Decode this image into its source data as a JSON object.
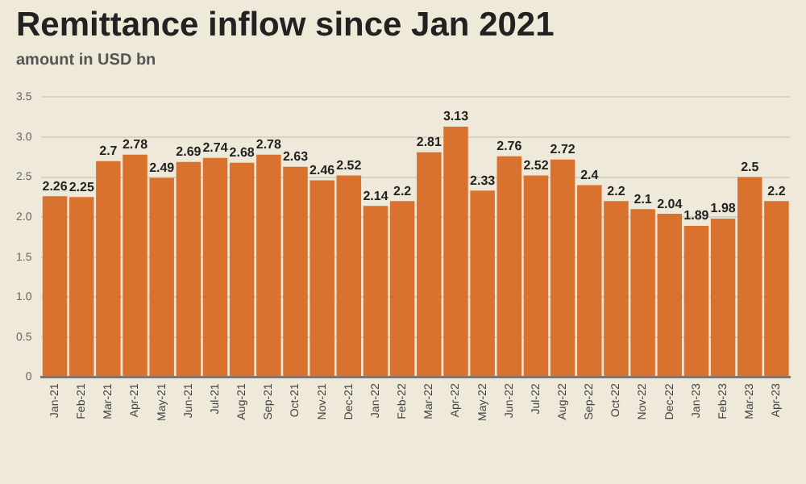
{
  "chart_data": {
    "type": "bar",
    "title": "Remittance inflow since Jan 2021",
    "subtitle": "amount in USD bn",
    "categories": [
      "Jan-21",
      "Feb-21",
      "Mar-21",
      "Apr-21",
      "May-21",
      "Jun-21",
      "Jul-21",
      "Aug-21",
      "Sep-21",
      "Oct-21",
      "Nov-21",
      "Dec-21",
      "Jan-22",
      "Feb-22",
      "Mar-22",
      "Apr-22",
      "May-22",
      "Jun-22",
      "Jul-22",
      "Aug-22",
      "Sep-22",
      "Oct-22",
      "Nov-22",
      "Dec-22",
      "Jan-23",
      "Feb-23",
      "Mar-23",
      "Apr-23"
    ],
    "values": [
      2.26,
      2.25,
      2.7,
      2.78,
      2.49,
      2.69,
      2.74,
      2.68,
      2.78,
      2.63,
      2.46,
      2.52,
      2.14,
      2.2,
      2.81,
      3.13,
      2.33,
      2.76,
      2.52,
      2.72,
      2.4,
      2.2,
      2.1,
      2.04,
      1.89,
      1.98,
      2.5,
      2.2
    ],
    "color": "#d9722e",
    "ylim": [
      0,
      3.5
    ],
    "yticks": [
      0,
      {
        "value": 0.5,
        "label": "0.5"
      },
      {
        "value": 1,
        "label": "1.0"
      },
      {
        "value": 1.5,
        "label": "1.5"
      },
      {
        "value": 2,
        "label": "2.0"
      },
      {
        "value": 2.5,
        "label": "2.5"
      },
      {
        "value": 3,
        "label": "3.0"
      },
      {
        "value": 3.5,
        "label": "3.5"
      }
    ],
    "grid": "y",
    "data_labels": true,
    "legend": false
  }
}
